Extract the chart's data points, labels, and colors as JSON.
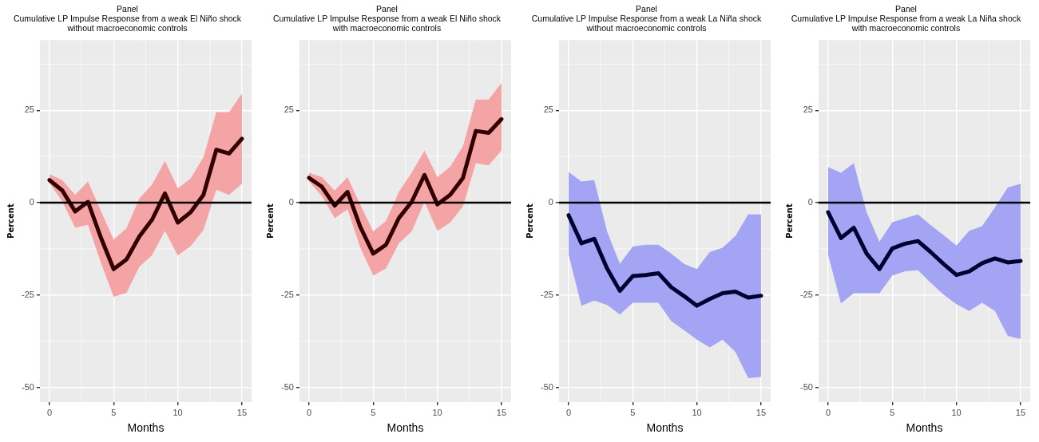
{
  "chart_data": [
    {
      "type": "line",
      "title": "Panel\nCumulative LP Impulse Response from a weak El Niño shock\nwithout macroeconomic controls",
      "xlabel": "Months",
      "ylabel": "Percent",
      "x": [
        0,
        1,
        2,
        3,
        4,
        5,
        6,
        7,
        8,
        9,
        10,
        11,
        12,
        13,
        14,
        15
      ],
      "xlim": [
        -0.75,
        15.75
      ],
      "xticks": [
        0,
        5,
        10,
        15
      ],
      "ylim": [
        -54,
        44
      ],
      "yticks": [
        -50,
        -25,
        0,
        25
      ],
      "grid": true,
      "legend": false,
      "marker": "none",
      "line_style": "solid",
      "ref_lines": [
        {
          "axis": "y",
          "value": 0,
          "color": "#000000"
        }
      ],
      "series": [
        {
          "color": "#330000",
          "values": [
            6.1,
            3.3,
            -2.4,
            0.2,
            -9.4,
            -18,
            -15.4,
            -9.2,
            -4.6,
            2.5,
            -5.4,
            -2.6,
            2.1,
            14.3,
            13.3,
            17.3
          ],
          "lower": [
            5.3,
            0.3,
            -6.8,
            -6,
            -16.2,
            -25.5,
            -24.4,
            -17.4,
            -14.2,
            -7.6,
            -14.3,
            -11.8,
            -7.4,
            3.5,
            2.1,
            5.1
          ],
          "upper": [
            7.7,
            6.1,
            2.1,
            5.7,
            -2.2,
            -10,
            -7,
            1.1,
            4.9,
            11.3,
            3.9,
            6.5,
            12.3,
            24.5,
            24.5,
            29.5
          ]
        }
      ]
    },
    {
      "type": "line",
      "title": "Panel\nCumulative LP Impulse Response from a weak El Niño shock\nwith macroeconomic controls",
      "xlabel": "Months",
      "ylabel": "Percent",
      "x": [
        0,
        1,
        2,
        3,
        4,
        5,
        6,
        7,
        8,
        9,
        10,
        11,
        12,
        13,
        14,
        15
      ],
      "xlim": [
        -0.75,
        15.75
      ],
      "xticks": [
        0,
        5,
        10,
        15
      ],
      "ylim": [
        -54,
        44
      ],
      "yticks": [
        -50,
        -25,
        0,
        25
      ],
      "grid": true,
      "legend": false,
      "marker": "none",
      "line_style": "solid",
      "ref_lines": [
        {
          "axis": "y",
          "value": 0,
          "color": "#000000"
        }
      ],
      "series": [
        {
          "color": "#330000",
          "values": [
            6.7,
            4.3,
            -0.8,
            2.9,
            -6.6,
            -13.8,
            -11.4,
            -4.2,
            0.2,
            7.5,
            -0.5,
            2.1,
            6.7,
            19.4,
            18.9,
            22.6
          ],
          "lower": [
            5.7,
            1.8,
            -4.2,
            -1.8,
            -12.2,
            -19.7,
            -17.8,
            -11,
            -7.8,
            0.2,
            -7.6,
            -5.4,
            -1,
            10.7,
            10.1,
            14.1
          ],
          "upper": [
            8.1,
            6.9,
            3.3,
            6.9,
            -0.6,
            -7.8,
            -5,
            2.9,
            8.1,
            14.1,
            6.9,
            9.7,
            15.3,
            27.9,
            27.9,
            32.4
          ]
        }
      ]
    },
    {
      "type": "line",
      "title": "Panel\nCumulative LP Impulse Response from a weak La Niña shock\nwithout macroeconomic controls",
      "xlabel": "Months",
      "ylabel": "Percent",
      "x": [
        0,
        1,
        2,
        3,
        4,
        5,
        6,
        7,
        8,
        9,
        10,
        11,
        12,
        13,
        14,
        15
      ],
      "xlim": [
        -0.75,
        15.75
      ],
      "xticks": [
        0,
        5,
        10,
        15
      ],
      "ylim": [
        -54,
        44
      ],
      "yticks": [
        -50,
        -25,
        0,
        25
      ],
      "grid": true,
      "legend": false,
      "marker": "none",
      "line_style": "solid",
      "ref_lines": [
        {
          "axis": "y",
          "value": 0,
          "color": "#000000"
        }
      ],
      "series": [
        {
          "color": "#000033",
          "values": [
            -3.4,
            -11,
            -9.8,
            -17.8,
            -23.9,
            -19.9,
            -19.6,
            -19.1,
            -22.9,
            -25.3,
            -27.9,
            -26.1,
            -24.5,
            -24.1,
            -25.7,
            -25.2
          ],
          "lower": [
            -14,
            -27.9,
            -26.5,
            -27.7,
            -30.3,
            -27.1,
            -27.1,
            -27.1,
            -32.1,
            -34.5,
            -37.1,
            -39.2,
            -37.1,
            -40.4,
            -47.5,
            -47.2
          ],
          "upper": [
            8.3,
            5.7,
            6.1,
            -7.8,
            -16.6,
            -11.9,
            -11.4,
            -11.4,
            -13.8,
            -16.6,
            -18,
            -13.4,
            -12.2,
            -9,
            -3.2,
            -3.2
          ]
        }
      ]
    },
    {
      "type": "line",
      "title": "Panel\nCumulative LP Impulse Response from a weak La Niña shock\nwith macroeconomic controls",
      "xlabel": "Months",
      "ylabel": "Percent",
      "x": [
        0,
        1,
        2,
        3,
        4,
        5,
        6,
        7,
        8,
        9,
        10,
        11,
        12,
        13,
        14,
        15
      ],
      "xlim": [
        -0.75,
        15.75
      ],
      "xticks": [
        0,
        5,
        10,
        15
      ],
      "ylim": [
        -54,
        44
      ],
      "yticks": [
        -50,
        -25,
        0,
        25
      ],
      "grid": true,
      "legend": false,
      "marker": "none",
      "line_style": "solid",
      "ref_lines": [
        {
          "axis": "y",
          "value": 0,
          "color": "#000000"
        }
      ],
      "series": [
        {
          "color": "#000033",
          "values": [
            -2.6,
            -9.6,
            -6.8,
            -13.8,
            -18,
            -12.4,
            -11.1,
            -10.4,
            -13.4,
            -16.6,
            -19.6,
            -18.6,
            -16.4,
            -15.1,
            -16.2,
            -15.8
          ],
          "lower": [
            -14.2,
            -27.3,
            -24.5,
            -24.5,
            -24.5,
            -19.7,
            -18.6,
            -18.3,
            -21.7,
            -24.9,
            -27.5,
            -29.3,
            -27.1,
            -29.3,
            -36.1,
            -36.9
          ],
          "upper": [
            9.6,
            8.1,
            10.7,
            -2.6,
            -10.6,
            -5.3,
            -4.2,
            -3.2,
            -6.1,
            -8.8,
            -11.6,
            -7.6,
            -6.4,
            -1.3,
            4.1,
            5.1
          ]
        }
      ]
    }
  ]
}
